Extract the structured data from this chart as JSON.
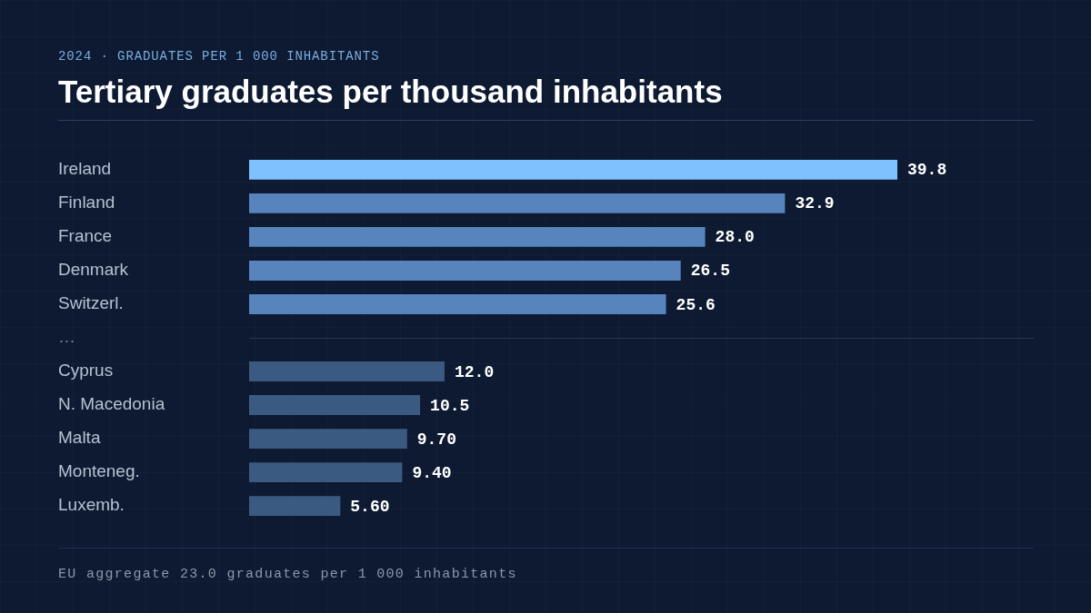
{
  "chart_data": {
    "type": "bar",
    "orientation": "horizontal",
    "subtitle": "2024 · GRADUATES PER 1 000 INHABITANTS",
    "title": "Tertiary graduates per thousand inhabitants",
    "categories": [
      "Ireland",
      "Finland",
      "France",
      "Denmark",
      "Switzerl.",
      "…",
      "Cyprus",
      "N. Macedonia",
      "Malta",
      "Monteneg.",
      "Luxemb."
    ],
    "values": [
      39.8,
      32.9,
      28.0,
      26.5,
      25.6,
      null,
      12.0,
      10.5,
      9.7,
      9.4,
      5.6
    ],
    "colors": [
      "#7fc1ff",
      "#5784bd",
      "#5784bd",
      "#5784bd",
      "#5784bd",
      null,
      "#3b5a82",
      "#3b5a82",
      "#3b5a82",
      "#3b5a82",
      "#3b5a82"
    ],
    "value_labels": [
      "39.8",
      "32.9",
      "28.0",
      "26.5",
      "25.6",
      null,
      "12.0",
      "10.5",
      "9.70",
      "9.40",
      "5.60"
    ],
    "ref_lines": [
      {
        "axis": "y",
        "value": "…",
        "color": "#26344d",
        "line_style": "solid"
      }
    ],
    "annotations": [
      "EU aggregate 23.0 graduates per 1 000 inhabitants"
    ],
    "tick_labels": "y",
    "legend": false
  }
}
